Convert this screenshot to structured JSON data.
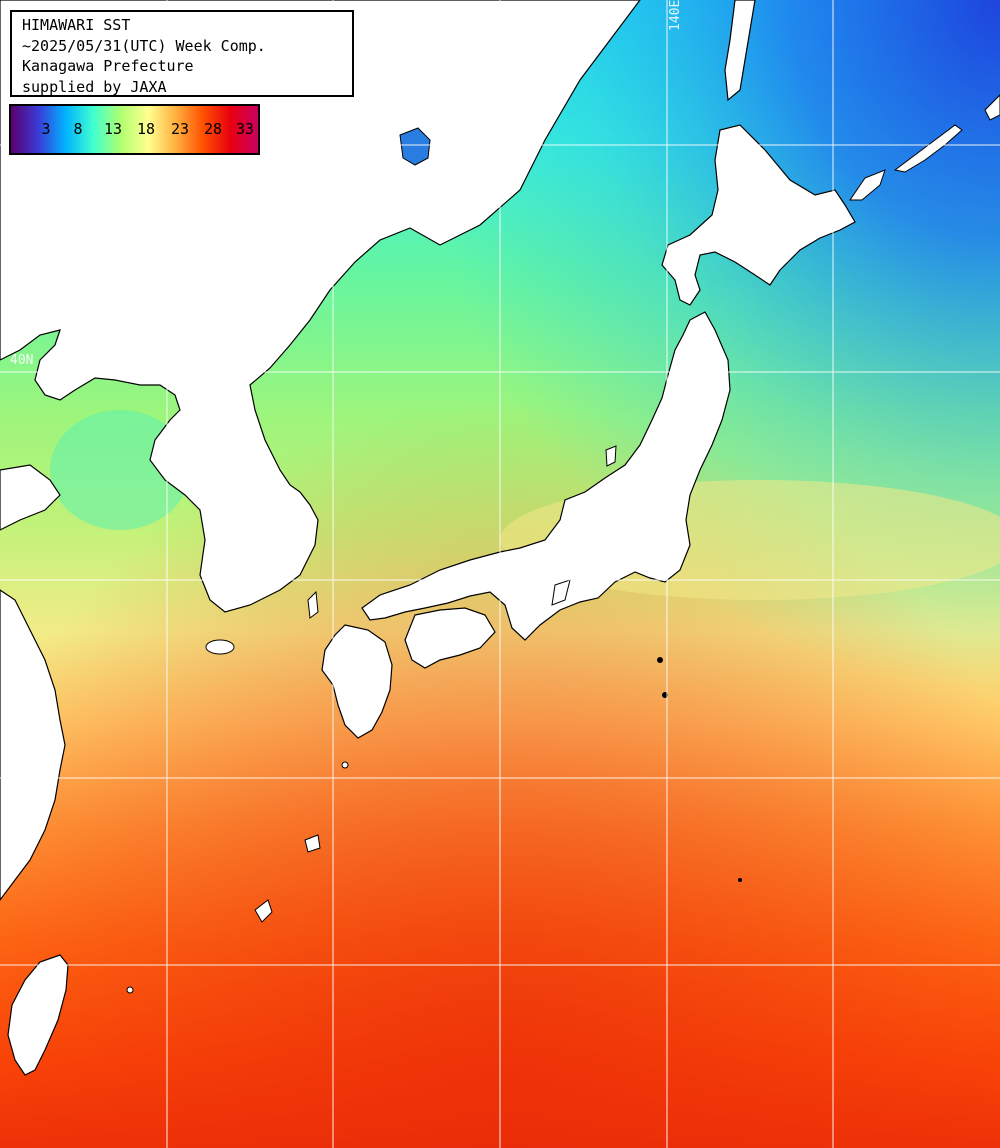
{
  "title_box": {
    "line1": "HIMAWARI SST",
    "line2": "~2025/05/31(UTC) Week Comp.",
    "line3": "Kanagawa Prefecture",
    "line4": "supplied by JAXA"
  },
  "legend": {
    "ticks": [
      "3",
      "8",
      "13",
      "18",
      "23",
      "28",
      "33"
    ],
    "gradient_colors": [
      "#5a006e",
      "#3a3ad8",
      "#00b4ff",
      "#40ffd0",
      "#b0ff70",
      "#ffff90",
      "#ffb040",
      "#ff5000",
      "#e80010",
      "#c80060"
    ]
  },
  "grid_labels": {
    "lon": "140E",
    "lat": "40N"
  },
  "colors": {
    "land": "#ffffff",
    "coastline": "#000000",
    "gridline": "#ffffff"
  }
}
